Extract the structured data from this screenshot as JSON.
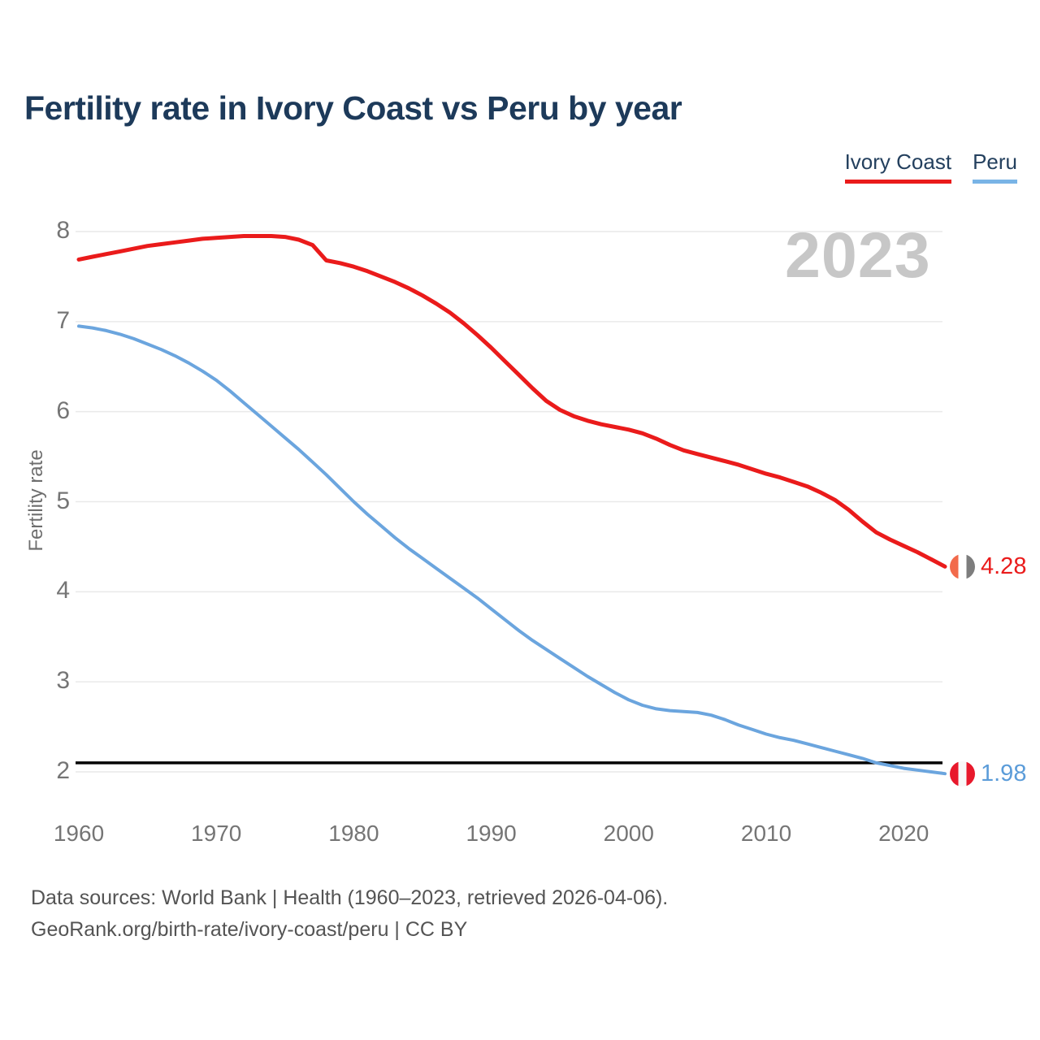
{
  "title": "Fertility rate in Ivory Coast vs Peru by year",
  "watermark": "2023",
  "legend": {
    "items": [
      {
        "label": "Ivory Coast",
        "underline_color": "#ea1b1b"
      },
      {
        "label": "Peru",
        "underline_color": "#79b4e6"
      }
    ]
  },
  "y_axis": {
    "label": "Fertility rate",
    "ticks": [
      "8",
      "7",
      "6",
      "5",
      "4",
      "3",
      "2"
    ]
  },
  "x_axis": {
    "ticks": [
      "1960",
      "1970",
      "1980",
      "1990",
      "2000",
      "2010",
      "2020"
    ]
  },
  "end_labels": [
    {
      "series": "Ivory Coast",
      "value": "4.28",
      "text_color": "#ea1b1b",
      "flag_icon": "ivory-coast-flag-icon",
      "flag_colors": [
        "#f26a4b",
        "#ffffff",
        "#7d7d7d"
      ]
    },
    {
      "series": "Peru",
      "value": "1.98",
      "text_color": "#5b9cd9",
      "flag_icon": "peru-flag-icon",
      "flag_colors": [
        "#e8192c",
        "#f8f8f8",
        "#e8192c"
      ]
    }
  ],
  "footer": {
    "line1": "Data sources: World Bank | Health (1960–2023, retrieved 2026-04-06).",
    "line2": "GeoRank.org/birth-rate/ivory-coast/peru | CC BY"
  },
  "colors": {
    "title": "#1d3a5a",
    "tick_label": "#757575",
    "grid": "#e9e9e9",
    "reference_line": "#000000",
    "watermark": "#c7c7c7",
    "ivory_coast_line": "#ea1b1b",
    "peru_line": "#6ba5de"
  },
  "chart_data": {
    "type": "line",
    "title": "Fertility rate in Ivory Coast vs Peru by year",
    "xlabel": "",
    "ylabel": "Fertility rate",
    "xlim": [
      1960,
      2023
    ],
    "ylim": [
      2,
      8
    ],
    "grid": true,
    "legend_position": "top-right",
    "x": [
      1960,
      1961,
      1962,
      1963,
      1964,
      1965,
      1966,
      1967,
      1968,
      1969,
      1970,
      1971,
      1972,
      1973,
      1974,
      1975,
      1976,
      1977,
      1978,
      1979,
      1980,
      1981,
      1982,
      1983,
      1984,
      1985,
      1986,
      1987,
      1988,
      1989,
      1990,
      1991,
      1992,
      1993,
      1994,
      1995,
      1996,
      1997,
      1998,
      1999,
      2000,
      2001,
      2002,
      2003,
      2004,
      2005,
      2006,
      2007,
      2008,
      2009,
      2010,
      2011,
      2012,
      2013,
      2014,
      2015,
      2016,
      2017,
      2018,
      2019,
      2020,
      2021,
      2022,
      2023
    ],
    "series": [
      {
        "name": "Ivory Coast",
        "color": "#ea1b1b",
        "end_value": 4.28,
        "values": [
          7.69,
          7.72,
          7.75,
          7.78,
          7.81,
          7.84,
          7.86,
          7.88,
          7.9,
          7.92,
          7.93,
          7.94,
          7.95,
          7.95,
          7.95,
          7.94,
          7.91,
          7.85,
          7.68,
          7.65,
          7.61,
          7.56,
          7.5,
          7.44,
          7.37,
          7.29,
          7.2,
          7.1,
          6.98,
          6.85,
          6.71,
          6.56,
          6.41,
          6.26,
          6.12,
          6.02,
          5.95,
          5.9,
          5.86,
          5.83,
          5.8,
          5.76,
          5.7,
          5.63,
          5.57,
          5.53,
          5.49,
          5.45,
          5.41,
          5.36,
          5.31,
          5.27,
          5.22,
          5.17,
          5.1,
          5.02,
          4.91,
          4.78,
          4.66,
          4.58,
          4.51,
          4.44,
          4.36,
          4.28
        ]
      },
      {
        "name": "Peru",
        "color": "#6ba5de",
        "end_value": 1.98,
        "values": [
          6.95,
          6.93,
          6.9,
          6.86,
          6.81,
          6.75,
          6.69,
          6.62,
          6.54,
          6.45,
          6.35,
          6.23,
          6.1,
          5.97,
          5.84,
          5.71,
          5.58,
          5.44,
          5.3,
          5.15,
          5.0,
          4.86,
          4.73,
          4.6,
          4.48,
          4.37,
          4.26,
          4.15,
          4.04,
          3.93,
          3.81,
          3.69,
          3.57,
          3.46,
          3.36,
          3.26,
          3.16,
          3.06,
          2.97,
          2.88,
          2.8,
          2.74,
          2.7,
          2.68,
          2.67,
          2.66,
          2.63,
          2.58,
          2.52,
          2.47,
          2.42,
          2.38,
          2.35,
          2.31,
          2.27,
          2.23,
          2.19,
          2.15,
          2.1,
          2.07,
          2.04,
          2.02,
          2.0,
          1.98
        ]
      }
    ],
    "reference_line": {
      "value": 2.1,
      "color": "#000000"
    }
  }
}
